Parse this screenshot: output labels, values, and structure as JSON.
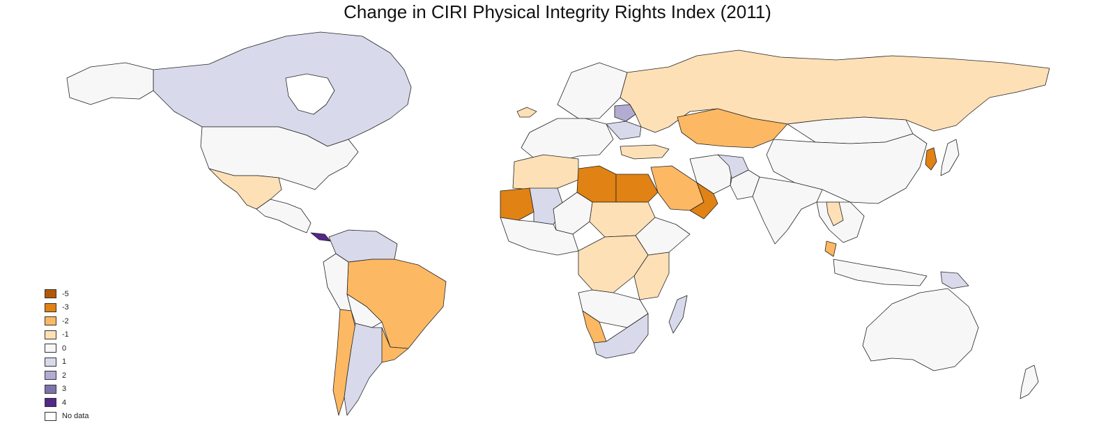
{
  "title": "Change in CIRI Physical Integrity Rights Index (2011)",
  "legend": {
    "items": [
      {
        "label": "-5",
        "color": "#b35806"
      },
      {
        "label": "-3",
        "color": "#e08214"
      },
      {
        "label": "-2",
        "color": "#fdb863"
      },
      {
        "label": "-1",
        "color": "#fee0b6"
      },
      {
        "label": "0",
        "color": "#f7f7f7"
      },
      {
        "label": "1",
        "color": "#d8daeb"
      },
      {
        "label": "2",
        "color": "#b2abd2"
      },
      {
        "label": "3",
        "color": "#8073ac"
      },
      {
        "label": "4",
        "color": "#542788"
      },
      {
        "label": "No data",
        "color": "#ffffff"
      }
    ]
  },
  "colors": {
    "-5": "#b35806",
    "-3": "#e08214",
    "-2": "#fdb863",
    "-1": "#fee0b6",
    "0": "#f7f7f7",
    "1": "#d8daeb",
    "2": "#b2abd2",
    "3": "#8073ac",
    "4": "#542788",
    "nodata": "#ffffff"
  },
  "countries": [
    {
      "id": "canada",
      "value": "1"
    },
    {
      "id": "greenland",
      "value": "nodata"
    },
    {
      "id": "alaska",
      "value": "0"
    },
    {
      "id": "usa",
      "value": "0"
    },
    {
      "id": "mexico",
      "value": "-1"
    },
    {
      "id": "central-america",
      "value": "0"
    },
    {
      "id": "panama",
      "value": "4"
    },
    {
      "id": "colombia-venezuela",
      "value": "1"
    },
    {
      "id": "brazil",
      "value": "-2"
    },
    {
      "id": "peru",
      "value": "0"
    },
    {
      "id": "bolivia",
      "value": "0"
    },
    {
      "id": "chile",
      "value": "-2"
    },
    {
      "id": "argentina",
      "value": "1"
    },
    {
      "id": "uruguay",
      "value": "-2"
    },
    {
      "id": "iceland",
      "value": "-1"
    },
    {
      "id": "scandinavia",
      "value": "0"
    },
    {
      "id": "western-europe",
      "value": "0"
    },
    {
      "id": "belarus",
      "value": "2"
    },
    {
      "id": "ukraine",
      "value": "1"
    },
    {
      "id": "russia",
      "value": "-1"
    },
    {
      "id": "kazakhstan",
      "value": "-2"
    },
    {
      "id": "mongolia",
      "value": "0"
    },
    {
      "id": "china",
      "value": "0"
    },
    {
      "id": "korea",
      "value": "-3"
    },
    {
      "id": "japan",
      "value": "0"
    },
    {
      "id": "turkey",
      "value": "-1"
    },
    {
      "id": "iran",
      "value": "0"
    },
    {
      "id": "afghanistan",
      "value": "1"
    },
    {
      "id": "pakistan",
      "value": "0"
    },
    {
      "id": "india",
      "value": "0"
    },
    {
      "id": "saudi-arabia",
      "value": "-2"
    },
    {
      "id": "yemen-oman",
      "value": "-3"
    },
    {
      "id": "morocco-algeria",
      "value": "-1"
    },
    {
      "id": "mauritania",
      "value": "-3"
    },
    {
      "id": "mali",
      "value": "1"
    },
    {
      "id": "libya",
      "value": "-3"
    },
    {
      "id": "egypt",
      "value": "-3"
    },
    {
      "id": "sudan",
      "value": "-1"
    },
    {
      "id": "sahel",
      "value": "0"
    },
    {
      "id": "west-africa",
      "value": "0"
    },
    {
      "id": "ethiopia",
      "value": "0"
    },
    {
      "id": "central-africa",
      "value": "-1"
    },
    {
      "id": "east-africa",
      "value": "-1"
    },
    {
      "id": "angola-zambia",
      "value": "0"
    },
    {
      "id": "namibia",
      "value": "-2"
    },
    {
      "id": "south-africa",
      "value": "1"
    },
    {
      "id": "madagascar",
      "value": "1"
    },
    {
      "id": "southeast-asia",
      "value": "0"
    },
    {
      "id": "vietnam",
      "value": "-1"
    },
    {
      "id": "malaysia",
      "value": "-2"
    },
    {
      "id": "indonesia",
      "value": "0"
    },
    {
      "id": "papua-new-guinea",
      "value": "1"
    },
    {
      "id": "australia",
      "value": "0"
    },
    {
      "id": "new-zealand",
      "value": "0"
    }
  ]
}
